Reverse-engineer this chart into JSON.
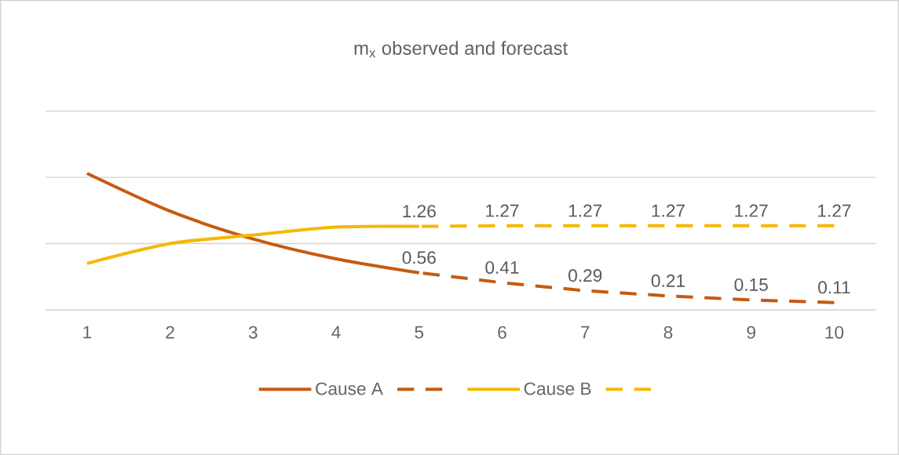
{
  "chart_data": {
    "type": "line",
    "title": "m$_{x}$ observed and forecast",
    "categories": [
      "1",
      "2",
      "3",
      "4",
      "5",
      "6",
      "7",
      "8",
      "9",
      "10"
    ],
    "series": [
      {
        "name": "Cause A",
        "color": "#c55a11",
        "line_style": "solid",
        "values": [
          2.06,
          1.49,
          1.07,
          0.77,
          0.56,
          null,
          null,
          null,
          null,
          null
        ]
      },
      {
        "color": "#c55a11",
        "line_style": "dashed",
        "values": [
          null,
          null,
          null,
          null,
          0.56,
          0.41,
          0.29,
          0.21,
          0.15,
          0.11
        ],
        "value_labels": [
          null,
          null,
          null,
          null,
          "0.56",
          "0.41",
          "0.29",
          "0.21",
          "0.15",
          "0.11"
        ]
      },
      {
        "name": "Cause B",
        "color": "#f5b800",
        "line_style": "solid",
        "values": [
          0.7,
          1.0,
          1.13,
          1.25,
          1.26,
          null,
          null,
          null,
          null,
          null
        ]
      },
      {
        "color": "#f5b800",
        "line_style": "dashed",
        "values": [
          null,
          null,
          null,
          null,
          1.26,
          1.27,
          1.27,
          1.27,
          1.27,
          1.27
        ],
        "value_labels": [
          null,
          null,
          null,
          null,
          "1.26",
          "1.27",
          "1.27",
          "1.27",
          "1.27",
          "1.27"
        ]
      }
    ],
    "ylim": [
      0,
      3
    ],
    "yticks": [
      {
        "value": 0,
        "label": null
      },
      {
        "value": 1,
        "label": null
      },
      {
        "value": 2,
        "label": null
      },
      {
        "value": 3,
        "label": null
      }
    ],
    "tick_labels": "x",
    "grid": "y",
    "legend": "bottom",
    "marker": "none"
  }
}
